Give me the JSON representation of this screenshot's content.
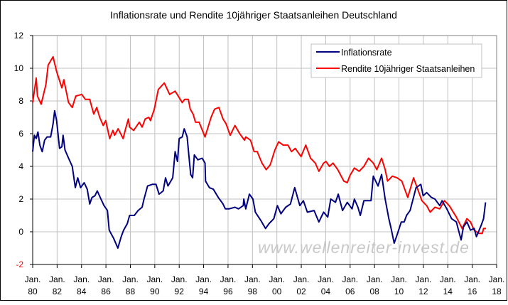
{
  "chart_data": {
    "type": "line",
    "title": "Inflationsrate und Rendite 10jähriger Staatsanleihen Deutschland",
    "xlabel": "",
    "ylabel": "",
    "xlim": [
      1980,
      2018
    ],
    "ylim": [
      -2,
      12
    ],
    "grid": true,
    "legend_position": "top-right",
    "watermark": "www.wellenreiter-invest.de",
    "y_ticks": [
      "12",
      "10",
      "8",
      "6",
      "4",
      "2",
      "0",
      "-2"
    ],
    "y_tick_values": [
      12,
      10,
      8,
      6,
      4,
      2,
      0,
      -2
    ],
    "x_ticks": [
      {
        "top": "Jan.",
        "bottom": "80",
        "year": 1980
      },
      {
        "top": "Jan.",
        "bottom": "82",
        "year": 1982
      },
      {
        "top": "Jan.",
        "bottom": "84",
        "year": 1984
      },
      {
        "top": "Jan.",
        "bottom": "86",
        "year": 1986
      },
      {
        "top": "Jan.",
        "bottom": "88",
        "year": 1988
      },
      {
        "top": "Jan.",
        "bottom": "90",
        "year": 1990
      },
      {
        "top": "Jan.",
        "bottom": "92",
        "year": 1992
      },
      {
        "top": "Jan.",
        "bottom": "94",
        "year": 1994
      },
      {
        "top": "Jan.",
        "bottom": "96",
        "year": 1996
      },
      {
        "top": "Jan.",
        "bottom": "98",
        "year": 1998
      },
      {
        "top": "Jan.",
        "bottom": "00",
        "year": 2000
      },
      {
        "top": "Jan.",
        "bottom": "02",
        "year": 2002
      },
      {
        "top": "Jan.",
        "bottom": "04",
        "year": 2004
      },
      {
        "top": "Jan.",
        "bottom": "06",
        "year": 2006
      },
      {
        "top": "Jan.",
        "bottom": "08",
        "year": 2008
      },
      {
        "top": "Jan.",
        "bottom": "10",
        "year": 2010
      },
      {
        "top": "Jan.",
        "bottom": "12",
        "year": 2012
      },
      {
        "top": "Jan.",
        "bottom": "14",
        "year": 2014
      },
      {
        "top": "Jan.",
        "bottom": "16",
        "year": 2016
      },
      {
        "top": "Jan.",
        "bottom": "18",
        "year": 2018
      }
    ],
    "series": [
      {
        "name": "Inflationsrate",
        "color": "#000080",
        "x": [
          1980.0,
          1980.14,
          1980.29,
          1980.43,
          1980.59,
          1980.78,
          1980.98,
          1981.18,
          1981.47,
          1981.67,
          1981.8,
          1981.96,
          1982.2,
          1982.39,
          1982.49,
          1982.65,
          1982.94,
          1983.24,
          1983.49,
          1983.69,
          1983.92,
          1984.22,
          1984.47,
          1984.67,
          1984.86,
          1985.1,
          1985.29,
          1985.59,
          1985.84,
          1986.12,
          1986.27,
          1986.63,
          1986.98,
          1987.25,
          1987.45,
          1987.75,
          1987.94,
          1988.33,
          1988.63,
          1988.96,
          1989.12,
          1989.41,
          1989.8,
          1990.1,
          1990.35,
          1990.69,
          1990.88,
          1991.08,
          1991.47,
          1991.67,
          1991.86,
          1992.0,
          1992.25,
          1992.41,
          1992.65,
          1992.75,
          1992.94,
          1993.1,
          1993.24,
          1993.53,
          1993.88,
          1994.12,
          1994.16,
          1994.47,
          1994.8,
          1995.2,
          1995.59,
          1995.78,
          1996.08,
          1996.57,
          1996.86,
          1997.25,
          1997.29,
          1997.45,
          1997.75,
          1998.04,
          1998.24,
          1998.68,
          1999.07,
          1999.36,
          1999.75,
          2000.04,
          2000.33,
          2000.72,
          2001.11,
          2001.46,
          2001.88,
          2002.17,
          2002.5,
          2003.05,
          2003.44,
          2003.83,
          2004.17,
          2004.41,
          2004.8,
          2005.03,
          2005.38,
          2005.77,
          2006.16,
          2006.35,
          2006.64,
          2006.83,
          2007.13,
          2007.71,
          2007.9,
          2008.29,
          2008.58,
          2008.87,
          2009.17,
          2009.36,
          2009.61,
          2009.84,
          2010.19,
          2010.43,
          2010.62,
          2010.91,
          2011.4,
          2011.79,
          2011.98,
          2012.27,
          2012.66,
          2012.95,
          2013.34,
          2013.53,
          2013.92,
          2014.31,
          2014.7,
          2015.09,
          2015.28,
          2015.57,
          2015.86,
          2016.16,
          2016.35,
          2016.74,
          2016.93,
          2017.09
        ],
        "values": [
          4.9,
          5.9,
          5.7,
          6.1,
          5.3,
          4.9,
          5.6,
          5.8,
          5.8,
          6.6,
          7.4,
          6.8,
          5.1,
          5.2,
          5.9,
          5.0,
          4.5,
          4.0,
          2.7,
          3.3,
          2.7,
          3.0,
          2.6,
          1.7,
          2.1,
          2.2,
          2.5,
          2.0,
          1.6,
          1.3,
          0.1,
          -0.4,
          -1.0,
          -0.3,
          0.1,
          0.5,
          1.0,
          1.0,
          1.3,
          1.5,
          2.0,
          2.8,
          2.9,
          2.9,
          2.3,
          2.5,
          3.3,
          2.8,
          3.3,
          4.9,
          4.3,
          5.7,
          5.8,
          6.3,
          5.8,
          5.0,
          3.5,
          3.3,
          4.7,
          4.4,
          4.5,
          4.2,
          3.1,
          2.7,
          2.6,
          2.1,
          1.7,
          1.4,
          1.4,
          1.5,
          1.4,
          1.6,
          2.0,
          1.4,
          2.3,
          2.0,
          1.2,
          0.7,
          0.2,
          0.5,
          0.8,
          1.6,
          1.1,
          1.5,
          1.7,
          2.7,
          1.6,
          1.9,
          1.2,
          1.3,
          0.6,
          1.2,
          0.9,
          2.0,
          1.8,
          2.3,
          1.3,
          1.8,
          1.4,
          2.0,
          1.5,
          1.0,
          1.9,
          1.9,
          3.4,
          2.8,
          3.5,
          2.0,
          0.8,
          0.2,
          -0.7,
          -0.2,
          0.6,
          0.6,
          1.0,
          1.3,
          2.7,
          2.9,
          2.2,
          2.4,
          2.1,
          2.0,
          1.6,
          1.9,
          1.4,
          0.8,
          0.6,
          -0.5,
          0.3,
          0.6,
          0.1,
          0.2,
          -0.3,
          0.4,
          0.8,
          1.8
        ]
      },
      {
        "name": "Rendite 10jähriger Staatsanleihen",
        "color": "#ff0000",
        "x": [
          1980.0,
          1980.29,
          1980.39,
          1980.69,
          1981.08,
          1981.27,
          1981.67,
          1981.96,
          1982.39,
          1982.55,
          1982.94,
          1983.24,
          1983.53,
          1984.02,
          1984.31,
          1984.67,
          1985.0,
          1985.25,
          1985.49,
          1985.78,
          1985.98,
          1986.31,
          1986.57,
          1986.71,
          1987.0,
          1987.41,
          1987.61,
          1987.84,
          1987.94,
          1988.27,
          1988.73,
          1988.96,
          1989.22,
          1989.51,
          1989.65,
          1989.96,
          1990.29,
          1990.78,
          1991.22,
          1991.67,
          1992.25,
          1992.45,
          1992.75,
          1992.9,
          1993.14,
          1993.33,
          1993.63,
          1994.12,
          1994.61,
          1994.9,
          1995.25,
          1995.59,
          1995.84,
          1996.18,
          1996.57,
          1996.96,
          1997.35,
          1997.45,
          1997.84,
          1998.14,
          1998.39,
          1998.78,
          1999.13,
          1999.46,
          1999.84,
          2000.14,
          2000.52,
          2000.91,
          2001.2,
          2001.5,
          2001.98,
          2002.37,
          2002.76,
          2003.15,
          2003.44,
          2003.83,
          2004.02,
          2004.31,
          2004.6,
          2004.99,
          2005.48,
          2005.77,
          2005.96,
          2006.35,
          2006.74,
          2007.13,
          2007.51,
          2007.9,
          2008.19,
          2008.58,
          2008.87,
          2009.07,
          2009.46,
          2009.84,
          2010.23,
          2010.72,
          2011.2,
          2011.59,
          2011.88,
          2012.27,
          2012.56,
          2012.95,
          2013.34,
          2013.73,
          2014.12,
          2014.7,
          2015.18,
          2015.57,
          2015.86,
          2016.16,
          2016.54,
          2016.83,
          2016.93,
          2017.13
        ],
        "values": [
          7.9,
          9.4,
          8.3,
          7.8,
          9.0,
          10.2,
          10.7,
          9.8,
          8.8,
          9.3,
          7.9,
          7.6,
          8.3,
          8.4,
          8.1,
          8.1,
          7.2,
          7.6,
          7.0,
          6.5,
          6.8,
          5.7,
          6.2,
          5.9,
          6.3,
          5.7,
          6.3,
          6.9,
          6.4,
          6.2,
          6.7,
          6.4,
          6.9,
          7.0,
          6.8,
          7.5,
          8.7,
          9.1,
          8.4,
          8.6,
          7.9,
          8.1,
          8.1,
          7.5,
          7.2,
          6.7,
          6.7,
          5.8,
          7.0,
          7.5,
          7.6,
          6.9,
          6.6,
          5.9,
          6.5,
          6.0,
          5.6,
          5.8,
          5.6,
          4.9,
          4.9,
          4.2,
          3.8,
          4.1,
          5.0,
          5.5,
          5.3,
          5.3,
          4.9,
          5.1,
          4.6,
          5.3,
          4.5,
          4.2,
          3.7,
          4.2,
          4.3,
          4.0,
          4.2,
          3.8,
          3.1,
          3.0,
          3.4,
          3.9,
          3.7,
          4.0,
          4.5,
          4.2,
          3.8,
          4.5,
          3.8,
          3.1,
          3.4,
          3.3,
          3.1,
          2.1,
          3.3,
          2.5,
          1.9,
          1.6,
          1.2,
          1.5,
          1.4,
          1.9,
          1.6,
          0.9,
          0.2,
          0.8,
          0.6,
          0.1,
          -0.1,
          -0.1,
          0.2,
          0.2
        ]
      }
    ]
  }
}
